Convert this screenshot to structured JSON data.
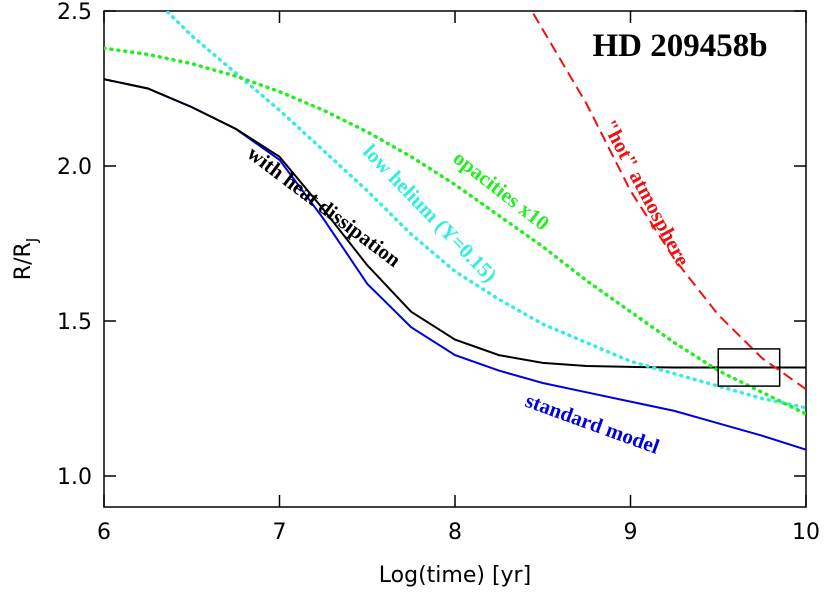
{
  "chart_data": {
    "type": "line",
    "title": "HD 209458b",
    "x_label": "Log(time)  [yr]",
    "y_label": "R/R",
    "y_label_subscript": "J",
    "x": [
      6,
      6.25,
      6.5,
      6.75,
      7,
      7.25,
      7.5,
      7.75,
      8,
      8.25,
      8.5,
      8.75,
      9,
      9.25,
      9.5,
      9.75,
      10
    ],
    "series": [
      {
        "name": "standard model",
        "color": "#0000dd",
        "style": "solid",
        "values": [
          2.28,
          2.25,
          2.19,
          2.12,
          2.02,
          1.83,
          1.62,
          1.48,
          1.39,
          1.34,
          1.3,
          1.27,
          1.24,
          1.21,
          1.17,
          1.13,
          1.085
        ]
      },
      {
        "name": "with heat dissipation",
        "color": "#000000",
        "style": "solid",
        "values": [
          2.28,
          2.25,
          2.19,
          2.12,
          2.03,
          1.86,
          1.68,
          1.53,
          1.44,
          1.39,
          1.365,
          1.355,
          1.352,
          1.35,
          1.35,
          1.35,
          1.35
        ]
      },
      {
        "name": "low helium (Y=0.15)",
        "color": "#33eedd",
        "style": "dotted",
        "values": [
          null,
          2.56,
          2.42,
          2.3,
          2.18,
          2.05,
          1.92,
          1.78,
          1.66,
          1.57,
          1.49,
          1.43,
          1.37,
          1.33,
          1.29,
          1.25,
          1.22
        ]
      },
      {
        "name": "opacities x10",
        "color": "#22ee22",
        "style": "dotted",
        "values": [
          2.38,
          2.36,
          2.33,
          2.29,
          2.24,
          2.18,
          2.11,
          2.03,
          1.94,
          1.84,
          1.74,
          1.63,
          1.53,
          1.43,
          1.34,
          1.27,
          1.2
        ]
      },
      {
        "name": "\"hot\" atmosphere",
        "color": "#ee1111",
        "style": "dashed",
        "values": [
          null,
          null,
          null,
          null,
          null,
          null,
          null,
          null,
          null,
          2.68,
          2.44,
          2.2,
          1.92,
          1.7,
          1.52,
          1.38,
          1.28
        ]
      }
    ],
    "box": {
      "x": [
        9.5,
        9.85
      ],
      "y": [
        1.29,
        1.41
      ]
    },
    "xlim": [
      6,
      10
    ],
    "ylim": [
      0.9,
      2.5
    ],
    "xticks": [
      6,
      7,
      8,
      9,
      10
    ],
    "yticks": [
      {
        "value": 1,
        "label": "1.0"
      },
      {
        "value": 1.5,
        "label": "1.5"
      },
      {
        "value": 2,
        "label": "2.0"
      },
      {
        "value": 2.5,
        "label": "2.5"
      }
    ]
  }
}
